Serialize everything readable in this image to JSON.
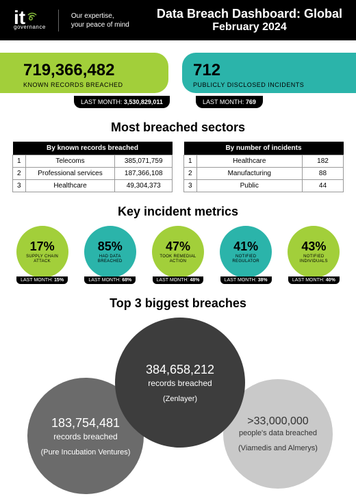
{
  "header": {
    "logo_prefix": "it",
    "logo_sub": "governance",
    "tagline_l1": "Our expertise,",
    "tagline_l2": "your peace of mind",
    "title": "Data Breach Dashboard: Global",
    "subtitle": "February 2024",
    "colors": {
      "green": "#a2cf3a",
      "teal": "#2bb4aa",
      "black": "#000000"
    }
  },
  "stats": {
    "records": {
      "value": "719,366,482",
      "label": "KNOWN RECORDS BREACHED",
      "last_month_label": "LAST MONTH:",
      "last_month_value": "3,530,829,011"
    },
    "incidents": {
      "value": "712",
      "label": "PUBLICLY DISCLOSED INCIDENTS",
      "last_month_label": "LAST MONTH:",
      "last_month_value": "769"
    }
  },
  "sectors": {
    "title": "Most breached sectors",
    "by_records": {
      "header": "By known records breached",
      "rows": [
        {
          "rank": "1",
          "name": "Telecoms",
          "value": "385,071,759"
        },
        {
          "rank": "2",
          "name": "Professional services",
          "value": "187,366,108"
        },
        {
          "rank": "3",
          "name": "Healthcare",
          "value": "49,304,373"
        }
      ]
    },
    "by_incidents": {
      "header": "By number of incidents",
      "rows": [
        {
          "rank": "1",
          "name": "Healthcare",
          "value": "182"
        },
        {
          "rank": "2",
          "name": "Manufacturing",
          "value": "88"
        },
        {
          "rank": "3",
          "name": "Public",
          "value": "44"
        }
      ]
    }
  },
  "metrics": {
    "title": "Key incident metrics",
    "items": [
      {
        "pct": "17%",
        "label": "SUPPLY CHAIN ATTACK",
        "color": "g",
        "last_label": "LAST MONTH:",
        "last_value": "15%"
      },
      {
        "pct": "85%",
        "label": "HAD DATA BREACHED",
        "color": "t",
        "last_label": "LAST MONTH:",
        "last_value": "68%"
      },
      {
        "pct": "47%",
        "label": "TOOK REMEDIAL ACTION",
        "color": "g",
        "last_label": "LAST MONTH:",
        "last_value": "48%"
      },
      {
        "pct": "41%",
        "label": "NOTIFIED REGULATOR",
        "color": "t",
        "last_label": "LAST MONTH:",
        "last_value": "38%"
      },
      {
        "pct": "43%",
        "label": "NOTIFIED INDIVIDUALS",
        "color": "g",
        "last_label": "LAST MONTH:",
        "last_value": "40%"
      }
    ]
  },
  "breaches": {
    "title": "Top 3 biggest breaches",
    "center": {
      "value": "384,658,212",
      "sub": "records breached",
      "src": "(Zenlayer)"
    },
    "left": {
      "value": "183,754,481",
      "sub": "records breached",
      "src": "(Pure Incubation Ventures)"
    },
    "right": {
      "value": ">33,000,000",
      "sub": "people's data breached",
      "src": "(Viamedis and Almerys)"
    }
  }
}
